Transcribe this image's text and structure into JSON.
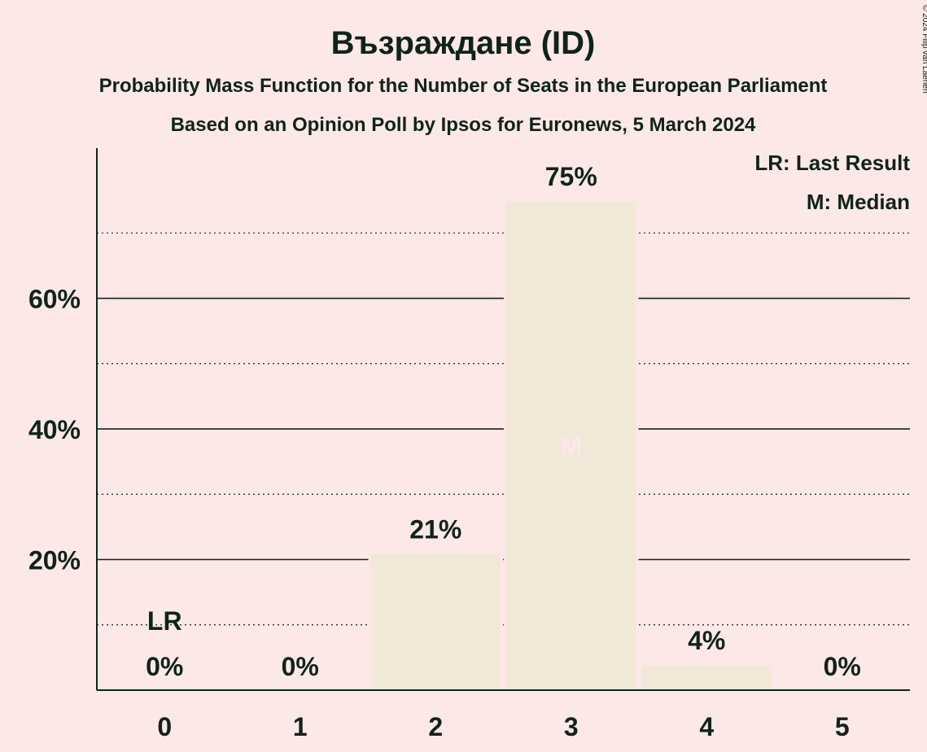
{
  "chart_data": {
    "type": "bar",
    "title": "Възраждане (ID)",
    "subtitle": "Probability Mass Function for the Number of Seats in the European Parliament",
    "subtitle2": "Based on an Opinion Poll by Ipsos for Euronews, 5 March 2024",
    "categories": [
      "0",
      "1",
      "2",
      "3",
      "4",
      "5"
    ],
    "values": [
      0,
      0,
      21,
      75,
      4,
      0
    ],
    "value_labels": [
      "0%",
      "0%",
      "21%",
      "75%",
      "4%",
      "0%"
    ],
    "ylim": [
      0,
      82
    ],
    "y_ticks": [
      20,
      40,
      60
    ],
    "y_tick_labels": [
      "20%",
      "40%",
      "60%"
    ],
    "y_minor_gridlines": [
      10,
      30,
      50,
      70
    ],
    "last_result_category": "0",
    "last_result_label": "LR",
    "median_category": "3",
    "median_label": "M",
    "legend": [
      "LR: Last Result",
      "M: Median"
    ],
    "legend_position": "top-right",
    "copyright": "© 2024 Filip van Laenen",
    "colors": {
      "background": "#FDE8E8",
      "bar": "#F2E8D8",
      "text": "#0F2418",
      "median_text": "#FDE8E8"
    }
  }
}
